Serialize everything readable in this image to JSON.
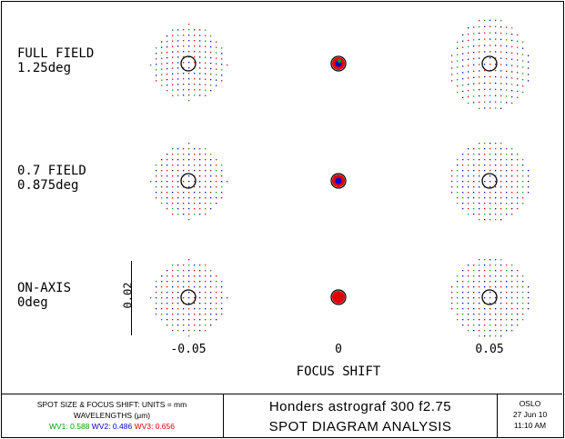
{
  "rows": [
    {
      "line1": "FULL FIELD",
      "line2": "1.25deg"
    },
    {
      "line1": "0.7 FIELD",
      "line2": "0.875deg"
    },
    {
      "line1": "ON-AXIS",
      "line2": "0deg"
    }
  ],
  "columns": [
    "-0.05",
    "0",
    "0.05"
  ],
  "axis_title": "FOCUS SHIFT",
  "scale_bar_label": "0.02",
  "footer": {
    "units_label": "SPOT SIZE & FOCUS SHIFT: UNITS = mm",
    "wavelengths_label": "WAVELENGTHS (μm)",
    "wavelengths": [
      {
        "label": "WV1: 0.588",
        "color": "#00a000"
      },
      {
        "label": "WV2: 0.486",
        "color": "#0000d0"
      },
      {
        "label": "WV3: 0.656",
        "color": "#e00000"
      }
    ],
    "title": "Honders astrograf 300 f2.75",
    "subtitle": "SPOT DIAGRAM ANALYSIS",
    "software": "OSLO",
    "date": "27 Jun 10",
    "time": "11:10 AM"
  },
  "colors": {
    "wv1": "#00a000",
    "wv2": "#0000d0",
    "wv3": "#e00000",
    "outline": "#000000"
  }
}
